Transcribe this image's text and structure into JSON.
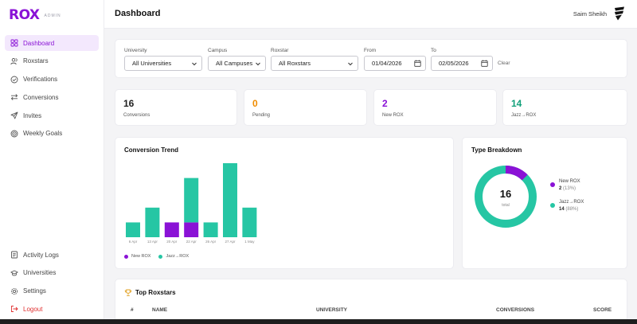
{
  "brand": {
    "name": "ROX",
    "tag": "ADMIN"
  },
  "sidebar": {
    "items": [
      {
        "label": "Dashboard",
        "icon": "grid-icon"
      },
      {
        "label": "Roxstars",
        "icon": "users-icon"
      },
      {
        "label": "Verifications",
        "icon": "check-circle-icon"
      },
      {
        "label": "Conversions",
        "icon": "swap-icon"
      },
      {
        "label": "Invites",
        "icon": "send-icon"
      },
      {
        "label": "Weekly Goals",
        "icon": "target-icon"
      }
    ],
    "bottom": [
      {
        "label": "Activity Logs",
        "icon": "log-icon"
      },
      {
        "label": "Universities",
        "icon": "graduation-cap-icon"
      },
      {
        "label": "Settings",
        "icon": "gear-icon"
      },
      {
        "label": "Logout",
        "icon": "logout-icon"
      }
    ]
  },
  "header": {
    "title": "Dashboard",
    "user": "Saim Sheikh"
  },
  "filters": {
    "university": {
      "label": "University",
      "value": "All Universities"
    },
    "campus": {
      "label": "Campus",
      "value": "All Campuses"
    },
    "roxstar": {
      "label": "Roxstar",
      "value": "All Roxstars"
    },
    "from": {
      "label": "From",
      "value": "01/04/2026"
    },
    "to": {
      "label": "To",
      "value": "02/05/2026"
    },
    "clear": "Clear"
  },
  "stats": [
    {
      "value": "16",
      "label": "Conversions",
      "color": "#111111"
    },
    {
      "value": "0",
      "label": "Pending",
      "color": "#f08c00"
    },
    {
      "value": "2",
      "label": "New ROX",
      "color": "#8a12d6"
    },
    {
      "value": "14",
      "label": "Jazz→ROX",
      "color": "#12a07a"
    }
  ],
  "trend": {
    "title": "Conversion Trend",
    "legend": [
      "New ROX",
      "Jazz→ROX"
    ]
  },
  "breakdown": {
    "title": "Type Breakdown",
    "total": "16",
    "total_label": "total",
    "items": [
      {
        "name": "New ROX",
        "count": "2",
        "pct": "(13%)"
      },
      {
        "name": "Jazz→ROX",
        "count": "14",
        "pct": "(88%)"
      }
    ]
  },
  "colors": {
    "accent": "#8a12d6",
    "teal": "#26c6a4",
    "orange": "#f08c00"
  },
  "chart_data": {
    "type": "bar",
    "stacked": true,
    "categories": [
      "6 Apr",
      "13 Apr",
      "20 Apr",
      "22 Apr",
      "26 Apr",
      "27 Apr",
      "1 May"
    ],
    "series": [
      {
        "name": "New ROX",
        "values": [
          0,
          0,
          1,
          1,
          0,
          0,
          0
        ]
      },
      {
        "name": "Jazz→ROX",
        "values": [
          1,
          2,
          0,
          3,
          1,
          5,
          2
        ]
      }
    ],
    "ylim": [
      0,
      5
    ]
  },
  "top": {
    "title": "Top Roxstars",
    "columns": [
      "#",
      "NAME",
      "UNIVERSITY",
      "CONVERSIONS",
      "SCORE"
    ]
  }
}
